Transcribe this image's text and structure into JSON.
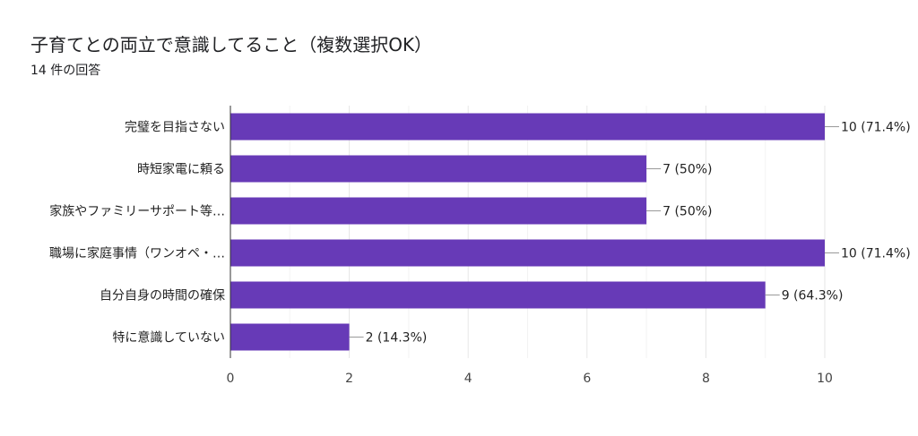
{
  "header": {
    "title": "子育てとの両立で意識してること（複数選択OK）",
    "response_count": "14 件の回答"
  },
  "chart_data": {
    "type": "bar",
    "orientation": "horizontal",
    "categories": [
      "完璧を目指さない",
      "時短家電に頼る",
      "家族やファミリーサポート等…",
      "職場に家庭事情（ワンオペ・…",
      "自分自身の時間の確保",
      "特に意識していない"
    ],
    "values": [
      10,
      7,
      7,
      10,
      9,
      2
    ],
    "value_labels": [
      "10 (71.4%)",
      "7 (50%)",
      "7 (50%)",
      "10 (71.4%)",
      "9 (64.3%)",
      "2 (14.3%)"
    ],
    "xlim": [
      0,
      10
    ],
    "x_ticks": [
      0,
      2,
      4,
      6,
      8,
      10
    ],
    "grid": true,
    "bar_color": "#673AB7"
  }
}
